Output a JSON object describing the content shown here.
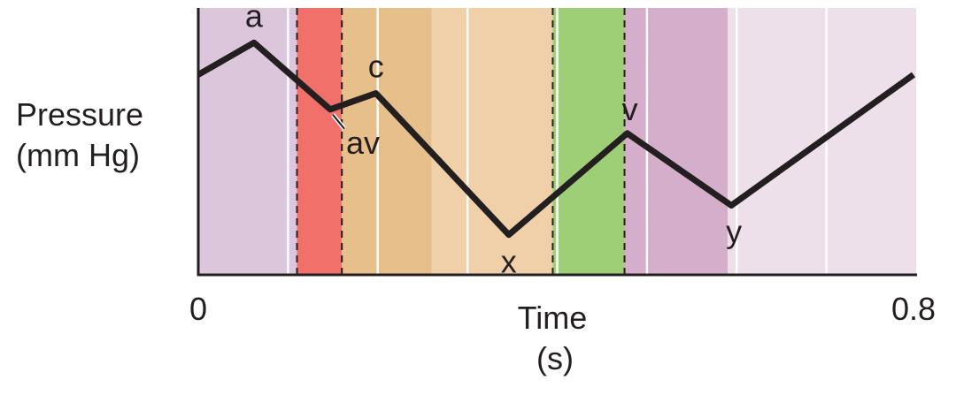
{
  "chart_data": {
    "type": "line",
    "xlabel_lines": [
      "Time",
      "(s)"
    ],
    "ylabel_lines": [
      "Pressure",
      "(mm Hg)"
    ],
    "xlim": [
      0,
      0.8
    ],
    "ylim": [
      0,
      100
    ],
    "x_tick_labels": [
      "0",
      "0.8"
    ],
    "x_ticks": [
      0,
      0.8
    ],
    "grid": "vertical lines every 0.1 s",
    "gridlines": [
      0.1,
      0.2,
      0.3,
      0.4,
      0.5,
      0.6,
      0.7
    ],
    "dashed_lines": [
      0.11,
      0.16,
      0.395,
      0.475
    ],
    "phases": [
      {
        "start": 0,
        "end": 0.11,
        "color": "#dcc6dc"
      },
      {
        "start": 0.11,
        "end": 0.16,
        "color": "#f2706a"
      },
      {
        "start": 0.16,
        "end": 0.26,
        "color": "#e7bf8a"
      },
      {
        "start": 0.26,
        "end": 0.395,
        "color": "#f0d0a8"
      },
      {
        "start": 0.395,
        "end": 0.475,
        "color": "#9ecf77"
      },
      {
        "start": 0.475,
        "end": 0.59,
        "color": "#d4aecb"
      },
      {
        "start": 0.59,
        "end": 0.8,
        "color": "#ede0ea"
      }
    ],
    "series": [
      {
        "x": [
          0,
          0.062,
          0.147,
          0.198,
          0.346,
          0.478,
          0.594,
          0.797
        ],
        "y": [
          75,
          87,
          62,
          68,
          15,
          53,
          26,
          75
        ],
        "color": "#231f20"
      }
    ],
    "annotations": [
      {
        "text": "a",
        "x": 0.062,
        "y": 87
      },
      {
        "text": "av",
        "x": 0.147,
        "y": 62
      },
      {
        "text": "c",
        "x": 0.198,
        "y": 68
      },
      {
        "text": "x",
        "x": 0.346,
        "y": 15
      },
      {
        "text": "v",
        "x": 0.478,
        "y": 53
      },
      {
        "text": "y",
        "x": 0.594,
        "y": 26
      }
    ]
  }
}
